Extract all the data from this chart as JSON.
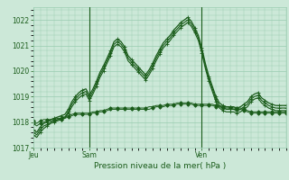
{
  "background_color": "#cce8d8",
  "grid_color": "#99ccb0",
  "line_color": "#1a5c1a",
  "axis_label": "Pression niveau de la mer( hPa )",
  "ylim": [
    1017.0,
    1022.5
  ],
  "yticks": [
    1017,
    1018,
    1019,
    1020,
    1021,
    1022
  ],
  "vlines_x": [
    16,
    48
  ],
  "num_points": 73,
  "xtick_pos": [
    0,
    16,
    48
  ],
  "xtick_labels": [
    "Jeu",
    "Sam",
    "Ven"
  ],
  "series": [
    [
      1017.6,
      1017.5,
      1017.7,
      1017.85,
      1017.9,
      1018.0,
      1018.05,
      1018.1,
      1018.15,
      1018.2,
      1018.4,
      1018.7,
      1018.9,
      1019.05,
      1019.15,
      1019.2,
      1018.95,
      1019.2,
      1019.5,
      1019.85,
      1020.1,
      1020.4,
      1020.7,
      1021.05,
      1021.15,
      1021.05,
      1020.85,
      1020.5,
      1020.35,
      1020.2,
      1020.05,
      1019.9,
      1019.75,
      1019.95,
      1020.2,
      1020.5,
      1020.75,
      1021.0,
      1021.15,
      1021.3,
      1021.5,
      1021.65,
      1021.8,
      1021.9,
      1022.0,
      1021.85,
      1021.6,
      1021.3,
      1020.8,
      1020.2,
      1019.7,
      1019.3,
      1018.9,
      1018.65,
      1018.55,
      1018.5,
      1018.5,
      1018.5,
      1018.45,
      1018.5,
      1018.6,
      1018.7,
      1018.9,
      1019.0,
      1019.05,
      1018.85,
      1018.75,
      1018.65,
      1018.6,
      1018.55,
      1018.55,
      1018.55,
      1018.55
    ],
    [
      1017.5,
      1017.4,
      1017.6,
      1017.75,
      1017.85,
      1017.95,
      1018.0,
      1018.05,
      1018.1,
      1018.15,
      1018.35,
      1018.6,
      1018.8,
      1018.95,
      1019.05,
      1019.1,
      1018.85,
      1019.1,
      1019.4,
      1019.75,
      1020.0,
      1020.3,
      1020.6,
      1020.95,
      1021.05,
      1020.95,
      1020.75,
      1020.4,
      1020.25,
      1020.1,
      1019.95,
      1019.8,
      1019.65,
      1019.85,
      1020.1,
      1020.4,
      1020.65,
      1020.9,
      1021.05,
      1021.2,
      1021.4,
      1021.55,
      1021.7,
      1021.8,
      1021.9,
      1021.75,
      1021.5,
      1021.2,
      1020.7,
      1020.1,
      1019.6,
      1019.2,
      1018.8,
      1018.55,
      1018.45,
      1018.4,
      1018.4,
      1018.4,
      1018.35,
      1018.4,
      1018.5,
      1018.6,
      1018.8,
      1018.9,
      1018.95,
      1018.75,
      1018.65,
      1018.55,
      1018.5,
      1018.45,
      1018.45,
      1018.45,
      1018.45
    ],
    [
      1017.7,
      1017.6,
      1017.8,
      1017.95,
      1018.0,
      1018.1,
      1018.15,
      1018.2,
      1018.25,
      1018.3,
      1018.5,
      1018.8,
      1019.0,
      1019.15,
      1019.25,
      1019.3,
      1019.05,
      1019.3,
      1019.6,
      1019.95,
      1020.2,
      1020.5,
      1020.8,
      1021.15,
      1021.25,
      1021.15,
      1020.95,
      1020.6,
      1020.45,
      1020.3,
      1020.15,
      1020.0,
      1019.85,
      1020.05,
      1020.3,
      1020.6,
      1020.85,
      1021.1,
      1021.25,
      1021.4,
      1021.6,
      1021.75,
      1021.9,
      1022.0,
      1022.1,
      1021.95,
      1021.7,
      1021.4,
      1020.9,
      1020.3,
      1019.8,
      1019.4,
      1019.0,
      1018.75,
      1018.65,
      1018.6,
      1018.6,
      1018.6,
      1018.55,
      1018.6,
      1018.7,
      1018.8,
      1019.0,
      1019.1,
      1019.15,
      1018.95,
      1018.85,
      1018.75,
      1018.7,
      1018.65,
      1018.65,
      1018.65,
      1018.65
    ],
    [
      1017.95,
      1017.85,
      1017.95,
      1018.0,
      1018.05,
      1018.05,
      1018.05,
      1018.1,
      1018.1,
      1018.15,
      1018.2,
      1018.25,
      1018.3,
      1018.3,
      1018.3,
      1018.3,
      1018.3,
      1018.35,
      1018.35,
      1018.4,
      1018.4,
      1018.45,
      1018.5,
      1018.5,
      1018.5,
      1018.5,
      1018.5,
      1018.5,
      1018.5,
      1018.5,
      1018.5,
      1018.5,
      1018.5,
      1018.5,
      1018.55,
      1018.6,
      1018.6,
      1018.6,
      1018.65,
      1018.65,
      1018.65,
      1018.7,
      1018.7,
      1018.7,
      1018.7,
      1018.7,
      1018.65,
      1018.65,
      1018.65,
      1018.65,
      1018.65,
      1018.65,
      1018.6,
      1018.6,
      1018.55,
      1018.55,
      1018.55,
      1018.5,
      1018.5,
      1018.5,
      1018.45,
      1018.4,
      1018.35,
      1018.35,
      1018.35,
      1018.35,
      1018.35,
      1018.35,
      1018.35,
      1018.35,
      1018.35,
      1018.35,
      1018.35
    ],
    [
      1018.05,
      1017.95,
      1018.05,
      1018.1,
      1018.1,
      1018.1,
      1018.1,
      1018.15,
      1018.15,
      1018.2,
      1018.25,
      1018.3,
      1018.35,
      1018.35,
      1018.35,
      1018.35,
      1018.35,
      1018.4,
      1018.4,
      1018.45,
      1018.45,
      1018.5,
      1018.55,
      1018.55,
      1018.55,
      1018.55,
      1018.55,
      1018.55,
      1018.55,
      1018.55,
      1018.55,
      1018.55,
      1018.55,
      1018.6,
      1018.6,
      1018.65,
      1018.65,
      1018.65,
      1018.7,
      1018.7,
      1018.7,
      1018.75,
      1018.75,
      1018.75,
      1018.75,
      1018.75,
      1018.7,
      1018.7,
      1018.7,
      1018.7,
      1018.7,
      1018.7,
      1018.65,
      1018.65,
      1018.6,
      1018.6,
      1018.6,
      1018.55,
      1018.55,
      1018.55,
      1018.5,
      1018.45,
      1018.4,
      1018.4,
      1018.4,
      1018.4,
      1018.4,
      1018.4,
      1018.4,
      1018.4,
      1018.4,
      1018.4,
      1018.4
    ]
  ]
}
